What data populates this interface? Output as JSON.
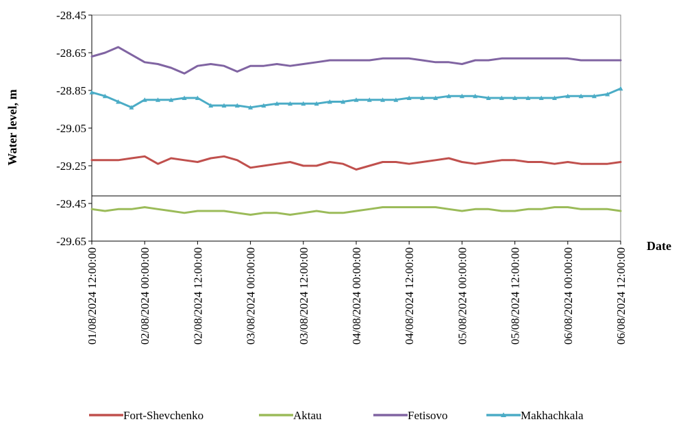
{
  "chart_data": {
    "type": "line",
    "title": "",
    "xlabel": "Date",
    "ylabel": "Water level, m",
    "ylim": [
      -29.65,
      -28.45
    ],
    "y_ticks": [
      "-28.45",
      "-28.65",
      "-28.85",
      "-29.05",
      "-29.25",
      "-29.45",
      "-29.65"
    ],
    "x_range": [
      "2024-08-01T12:00:00",
      "2024-08-06T12:00:00"
    ],
    "x_ticks": [
      "01/08/2024 12:00:00",
      "02/08/2024 00:00:00",
      "02/08/2024 12:00:00",
      "03/08/2024 00:00:00",
      "03/08/2024 12:00:00",
      "04/08/2024 00:00:00",
      "04/08/2024 12:00:00",
      "05/08/2024 00:00:00",
      "05/08/2024 12:00:00",
      "06/08/2024 00:00:00",
      "06/08/2024 12:00:00"
    ],
    "grid": false,
    "axis_break": -29.4,
    "legend_position": "bottom",
    "series": [
      {
        "name": "Fort-Shevchenko",
        "color": "#c0504d",
        "marker": "none",
        "points": [
          [
            "2024-08-01T12:00:00",
            -29.22
          ],
          [
            "2024-08-01T15:00:00",
            -29.22
          ],
          [
            "2024-08-01T18:00:00",
            -29.22
          ],
          [
            "2024-08-01T21:00:00",
            -29.21
          ],
          [
            "2024-08-02T00:00:00",
            -29.2
          ],
          [
            "2024-08-02T03:00:00",
            -29.24
          ],
          [
            "2024-08-02T06:00:00",
            -29.21
          ],
          [
            "2024-08-02T09:00:00",
            -29.22
          ],
          [
            "2024-08-02T12:00:00",
            -29.23
          ],
          [
            "2024-08-02T15:00:00",
            -29.21
          ],
          [
            "2024-08-02T18:00:00",
            -29.2
          ],
          [
            "2024-08-02T21:00:00",
            -29.22
          ],
          [
            "2024-08-03T00:00:00",
            -29.26
          ],
          [
            "2024-08-03T03:00:00",
            -29.25
          ],
          [
            "2024-08-03T06:00:00",
            -29.24
          ],
          [
            "2024-08-03T09:00:00",
            -29.23
          ],
          [
            "2024-08-03T12:00:00",
            -29.25
          ],
          [
            "2024-08-03T15:00:00",
            -29.25
          ],
          [
            "2024-08-03T18:00:00",
            -29.23
          ],
          [
            "2024-08-03T21:00:00",
            -29.24
          ],
          [
            "2024-08-04T00:00:00",
            -29.27
          ],
          [
            "2024-08-04T03:00:00",
            -29.25
          ],
          [
            "2024-08-04T06:00:00",
            -29.23
          ],
          [
            "2024-08-04T09:00:00",
            -29.23
          ],
          [
            "2024-08-04T12:00:00",
            -29.24
          ],
          [
            "2024-08-04T15:00:00",
            -29.23
          ],
          [
            "2024-08-04T18:00:00",
            -29.22
          ],
          [
            "2024-08-04T21:00:00",
            -29.21
          ],
          [
            "2024-08-05T00:00:00",
            -29.23
          ],
          [
            "2024-08-05T03:00:00",
            -29.24
          ],
          [
            "2024-08-05T06:00:00",
            -29.23
          ],
          [
            "2024-08-05T09:00:00",
            -29.22
          ],
          [
            "2024-08-05T12:00:00",
            -29.22
          ],
          [
            "2024-08-05T15:00:00",
            -29.23
          ],
          [
            "2024-08-05T18:00:00",
            -29.23
          ],
          [
            "2024-08-05T21:00:00",
            -29.24
          ],
          [
            "2024-08-06T00:00:00",
            -29.23
          ],
          [
            "2024-08-06T03:00:00",
            -29.24
          ],
          [
            "2024-08-06T06:00:00",
            -29.24
          ],
          [
            "2024-08-06T09:00:00",
            -29.24
          ],
          [
            "2024-08-06T12:00:00",
            -29.23
          ]
        ]
      },
      {
        "name": "Aktau",
        "color": "#9bbb59",
        "marker": "none",
        "points": [
          [
            "2024-08-01T12:00:00",
            -29.48
          ],
          [
            "2024-08-01T15:00:00",
            -29.49
          ],
          [
            "2024-08-01T18:00:00",
            -29.48
          ],
          [
            "2024-08-01T21:00:00",
            -29.48
          ],
          [
            "2024-08-02T00:00:00",
            -29.47
          ],
          [
            "2024-08-02T03:00:00",
            -29.48
          ],
          [
            "2024-08-02T06:00:00",
            -29.49
          ],
          [
            "2024-08-02T09:00:00",
            -29.5
          ],
          [
            "2024-08-02T12:00:00",
            -29.49
          ],
          [
            "2024-08-02T15:00:00",
            -29.49
          ],
          [
            "2024-08-02T18:00:00",
            -29.49
          ],
          [
            "2024-08-02T21:00:00",
            -29.5
          ],
          [
            "2024-08-03T00:00:00",
            -29.51
          ],
          [
            "2024-08-03T03:00:00",
            -29.5
          ],
          [
            "2024-08-03T06:00:00",
            -29.5
          ],
          [
            "2024-08-03T09:00:00",
            -29.51
          ],
          [
            "2024-08-03T12:00:00",
            -29.5
          ],
          [
            "2024-08-03T15:00:00",
            -29.49
          ],
          [
            "2024-08-03T18:00:00",
            -29.5
          ],
          [
            "2024-08-03T21:00:00",
            -29.5
          ],
          [
            "2024-08-04T00:00:00",
            -29.49
          ],
          [
            "2024-08-04T03:00:00",
            -29.48
          ],
          [
            "2024-08-04T06:00:00",
            -29.47
          ],
          [
            "2024-08-04T09:00:00",
            -29.47
          ],
          [
            "2024-08-04T12:00:00",
            -29.47
          ],
          [
            "2024-08-04T15:00:00",
            -29.47
          ],
          [
            "2024-08-04T18:00:00",
            -29.47
          ],
          [
            "2024-08-04T21:00:00",
            -29.48
          ],
          [
            "2024-08-05T00:00:00",
            -29.49
          ],
          [
            "2024-08-05T03:00:00",
            -29.48
          ],
          [
            "2024-08-05T06:00:00",
            -29.48
          ],
          [
            "2024-08-05T09:00:00",
            -29.49
          ],
          [
            "2024-08-05T12:00:00",
            -29.49
          ],
          [
            "2024-08-05T15:00:00",
            -29.48
          ],
          [
            "2024-08-05T18:00:00",
            -29.48
          ],
          [
            "2024-08-05T21:00:00",
            -29.47
          ],
          [
            "2024-08-06T00:00:00",
            -29.47
          ],
          [
            "2024-08-06T03:00:00",
            -29.48
          ],
          [
            "2024-08-06T06:00:00",
            -29.48
          ],
          [
            "2024-08-06T09:00:00",
            -29.48
          ],
          [
            "2024-08-06T12:00:00",
            -29.49
          ]
        ]
      },
      {
        "name": "Fetisovo",
        "color": "#8064a2",
        "marker": "none",
        "points": [
          [
            "2024-08-01T12:00:00",
            -28.67
          ],
          [
            "2024-08-01T15:00:00",
            -28.65
          ],
          [
            "2024-08-01T18:00:00",
            -28.62
          ],
          [
            "2024-08-01T21:00:00",
            -28.66
          ],
          [
            "2024-08-02T00:00:00",
            -28.7
          ],
          [
            "2024-08-02T03:00:00",
            -28.71
          ],
          [
            "2024-08-02T06:00:00",
            -28.73
          ],
          [
            "2024-08-02T09:00:00",
            -28.76
          ],
          [
            "2024-08-02T12:00:00",
            -28.72
          ],
          [
            "2024-08-02T15:00:00",
            -28.71
          ],
          [
            "2024-08-02T18:00:00",
            -28.72
          ],
          [
            "2024-08-02T21:00:00",
            -28.75
          ],
          [
            "2024-08-03T00:00:00",
            -28.72
          ],
          [
            "2024-08-03T03:00:00",
            -28.72
          ],
          [
            "2024-08-03T06:00:00",
            -28.71
          ],
          [
            "2024-08-03T09:00:00",
            -28.72
          ],
          [
            "2024-08-03T12:00:00",
            -28.71
          ],
          [
            "2024-08-03T15:00:00",
            -28.7
          ],
          [
            "2024-08-03T18:00:00",
            -28.69
          ],
          [
            "2024-08-03T21:00:00",
            -28.69
          ],
          [
            "2024-08-04T00:00:00",
            -28.69
          ],
          [
            "2024-08-04T03:00:00",
            -28.69
          ],
          [
            "2024-08-04T06:00:00",
            -28.68
          ],
          [
            "2024-08-04T09:00:00",
            -28.68
          ],
          [
            "2024-08-04T12:00:00",
            -28.68
          ],
          [
            "2024-08-04T15:00:00",
            -28.69
          ],
          [
            "2024-08-04T18:00:00",
            -28.7
          ],
          [
            "2024-08-04T21:00:00",
            -28.7
          ],
          [
            "2024-08-05T00:00:00",
            -28.71
          ],
          [
            "2024-08-05T03:00:00",
            -28.69
          ],
          [
            "2024-08-05T06:00:00",
            -28.69
          ],
          [
            "2024-08-05T09:00:00",
            -28.68
          ],
          [
            "2024-08-05T12:00:00",
            -28.68
          ],
          [
            "2024-08-05T15:00:00",
            -28.68
          ],
          [
            "2024-08-05T18:00:00",
            -28.68
          ],
          [
            "2024-08-05T21:00:00",
            -28.68
          ],
          [
            "2024-08-06T00:00:00",
            -28.68
          ],
          [
            "2024-08-06T03:00:00",
            -28.69
          ],
          [
            "2024-08-06T06:00:00",
            -28.69
          ],
          [
            "2024-08-06T09:00:00",
            -28.69
          ],
          [
            "2024-08-06T12:00:00",
            -28.69
          ]
        ]
      },
      {
        "name": "Makhachkala",
        "color": "#4bacc6",
        "marker": "triangle",
        "points": [
          [
            "2024-08-01T12:00:00",
            -28.86
          ],
          [
            "2024-08-01T15:00:00",
            -28.88
          ],
          [
            "2024-08-01T18:00:00",
            -28.91
          ],
          [
            "2024-08-01T21:00:00",
            -28.94
          ],
          [
            "2024-08-02T00:00:00",
            -28.9
          ],
          [
            "2024-08-02T03:00:00",
            -28.9
          ],
          [
            "2024-08-02T06:00:00",
            -28.9
          ],
          [
            "2024-08-02T09:00:00",
            -28.89
          ],
          [
            "2024-08-02T12:00:00",
            -28.89
          ],
          [
            "2024-08-02T15:00:00",
            -28.93
          ],
          [
            "2024-08-02T18:00:00",
            -28.93
          ],
          [
            "2024-08-02T21:00:00",
            -28.93
          ],
          [
            "2024-08-03T00:00:00",
            -28.94
          ],
          [
            "2024-08-03T03:00:00",
            -28.93
          ],
          [
            "2024-08-03T06:00:00",
            -28.92
          ],
          [
            "2024-08-03T09:00:00",
            -28.92
          ],
          [
            "2024-08-03T12:00:00",
            -28.92
          ],
          [
            "2024-08-03T15:00:00",
            -28.92
          ],
          [
            "2024-08-03T18:00:00",
            -28.91
          ],
          [
            "2024-08-03T21:00:00",
            -28.91
          ],
          [
            "2024-08-04T00:00:00",
            -28.9
          ],
          [
            "2024-08-04T03:00:00",
            -28.9
          ],
          [
            "2024-08-04T06:00:00",
            -28.9
          ],
          [
            "2024-08-04T09:00:00",
            -28.9
          ],
          [
            "2024-08-04T12:00:00",
            -28.89
          ],
          [
            "2024-08-04T15:00:00",
            -28.89
          ],
          [
            "2024-08-04T18:00:00",
            -28.89
          ],
          [
            "2024-08-04T21:00:00",
            -28.88
          ],
          [
            "2024-08-05T00:00:00",
            -28.88
          ],
          [
            "2024-08-05T03:00:00",
            -28.88
          ],
          [
            "2024-08-05T06:00:00",
            -28.89
          ],
          [
            "2024-08-05T09:00:00",
            -28.89
          ],
          [
            "2024-08-05T12:00:00",
            -28.89
          ],
          [
            "2024-08-05T15:00:00",
            -28.89
          ],
          [
            "2024-08-05T18:00:00",
            -28.89
          ],
          [
            "2024-08-05T21:00:00",
            -28.89
          ],
          [
            "2024-08-06T00:00:00",
            -28.88
          ],
          [
            "2024-08-06T03:00:00",
            -28.88
          ],
          [
            "2024-08-06T06:00:00",
            -28.88
          ],
          [
            "2024-08-06T09:00:00",
            -28.87
          ],
          [
            "2024-08-06T12:00:00",
            -28.84
          ]
        ]
      }
    ]
  }
}
